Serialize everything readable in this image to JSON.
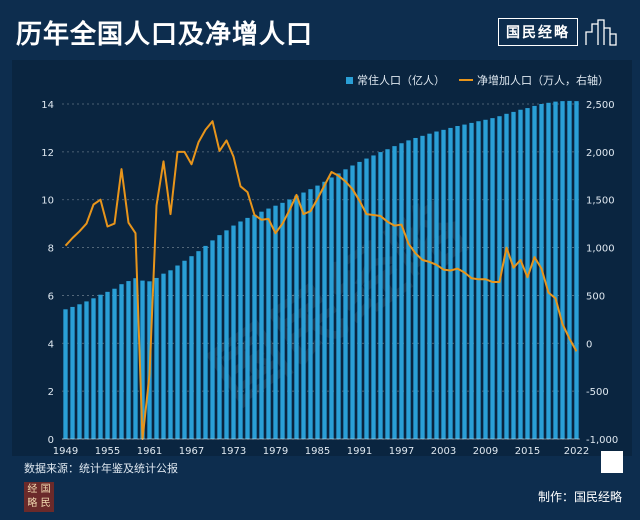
{
  "header": {
    "title": "历年全国人口及净增人口",
    "brand": "国民经略"
  },
  "legend": {
    "bars": "常住人口（亿人）",
    "line": "净增加人口（万人，右轴）"
  },
  "footer": {
    "source": "数据来源：统计年鉴及统计公报",
    "credit": "制作：国民经略",
    "logo_text": "经略国民"
  },
  "watermark": "国民经略",
  "colors": {
    "background": "#0d2d4e",
    "bars": "#2a9fd6",
    "line": "#e8951b"
  },
  "chart_data": {
    "type": "bar",
    "title": "历年全国人口及净增人口",
    "x": [
      1949,
      1950,
      1951,
      1952,
      1953,
      1954,
      1955,
      1956,
      1957,
      1958,
      1959,
      1960,
      1961,
      1962,
      1963,
      1964,
      1965,
      1966,
      1967,
      1968,
      1969,
      1970,
      1971,
      1972,
      1973,
      1974,
      1975,
      1976,
      1977,
      1978,
      1979,
      1980,
      1981,
      1982,
      1983,
      1984,
      1985,
      1986,
      1987,
      1988,
      1989,
      1990,
      1991,
      1992,
      1993,
      1994,
      1995,
      1996,
      1997,
      1998,
      1999,
      2000,
      2001,
      2002,
      2003,
      2004,
      2005,
      2006,
      2007,
      2008,
      2009,
      2010,
      2011,
      2012,
      2013,
      2014,
      2015,
      2016,
      2017,
      2018,
      2019,
      2020,
      2021,
      2022
    ],
    "x_ticks": [
      "1949",
      "1955",
      "1961",
      "1967",
      "1973",
      "1979",
      "1985",
      "1991",
      "1997",
      "2003",
      "2009",
      "2015",
      "2022"
    ],
    "y_left": {
      "ticks": [
        "0",
        "2",
        "4",
        "6",
        "8",
        "10",
        "12",
        "14"
      ],
      "lim": [
        0,
        14
      ]
    },
    "y_right": {
      "ticks": [
        "-1,000",
        "-500",
        "0",
        "500",
        "1,000",
        "1,500",
        "2,000",
        "2,500"
      ],
      "lim": [
        -1000,
        2500
      ]
    },
    "series": [
      {
        "name": "常住人口（亿人）",
        "type": "bar",
        "axis": "left",
        "values": [
          5.42,
          5.52,
          5.63,
          5.75,
          5.88,
          6.03,
          6.15,
          6.28,
          6.47,
          6.6,
          6.72,
          6.62,
          6.59,
          6.73,
          6.91,
          7.05,
          7.25,
          7.45,
          7.64,
          7.85,
          8.07,
          8.3,
          8.52,
          8.72,
          8.92,
          9.09,
          9.24,
          9.37,
          9.5,
          9.63,
          9.75,
          9.87,
          10.01,
          10.17,
          10.3,
          10.44,
          10.59,
          10.75,
          10.93,
          11.1,
          11.27,
          11.43,
          11.58,
          11.72,
          11.85,
          11.99,
          12.11,
          12.24,
          12.36,
          12.48,
          12.58,
          12.67,
          12.76,
          12.85,
          12.92,
          13.0,
          13.08,
          13.14,
          13.21,
          13.28,
          13.34,
          13.41,
          13.49,
          13.59,
          13.67,
          13.76,
          13.83,
          13.92,
          14.0,
          14.05,
          14.1,
          14.12,
          14.13,
          14.12
        ]
      },
      {
        "name": "净增加人口（万人，右轴）",
        "type": "line",
        "axis": "right",
        "values": [
          1020,
          1100,
          1170,
          1250,
          1450,
          1500,
          1220,
          1250,
          1820,
          1260,
          1150,
          -1000,
          -330,
          1440,
          1900,
          1350,
          2000,
          2000,
          1870,
          2100,
          2230,
          2320,
          2010,
          2120,
          1950,
          1640,
          1580,
          1340,
          1290,
          1300,
          1150,
          1250,
          1390,
          1550,
          1350,
          1380,
          1510,
          1650,
          1790,
          1750,
          1690,
          1610,
          1490,
          1350,
          1340,
          1330,
          1270,
          1230,
          1240,
          1040,
          940,
          870,
          850,
          820,
          770,
          760,
          780,
          740,
          680,
          670,
          670,
          640,
          640,
          1000,
          790,
          870,
          690,
          900,
          780,
          530,
          470,
          200,
          48,
          -85
        ]
      }
    ]
  }
}
